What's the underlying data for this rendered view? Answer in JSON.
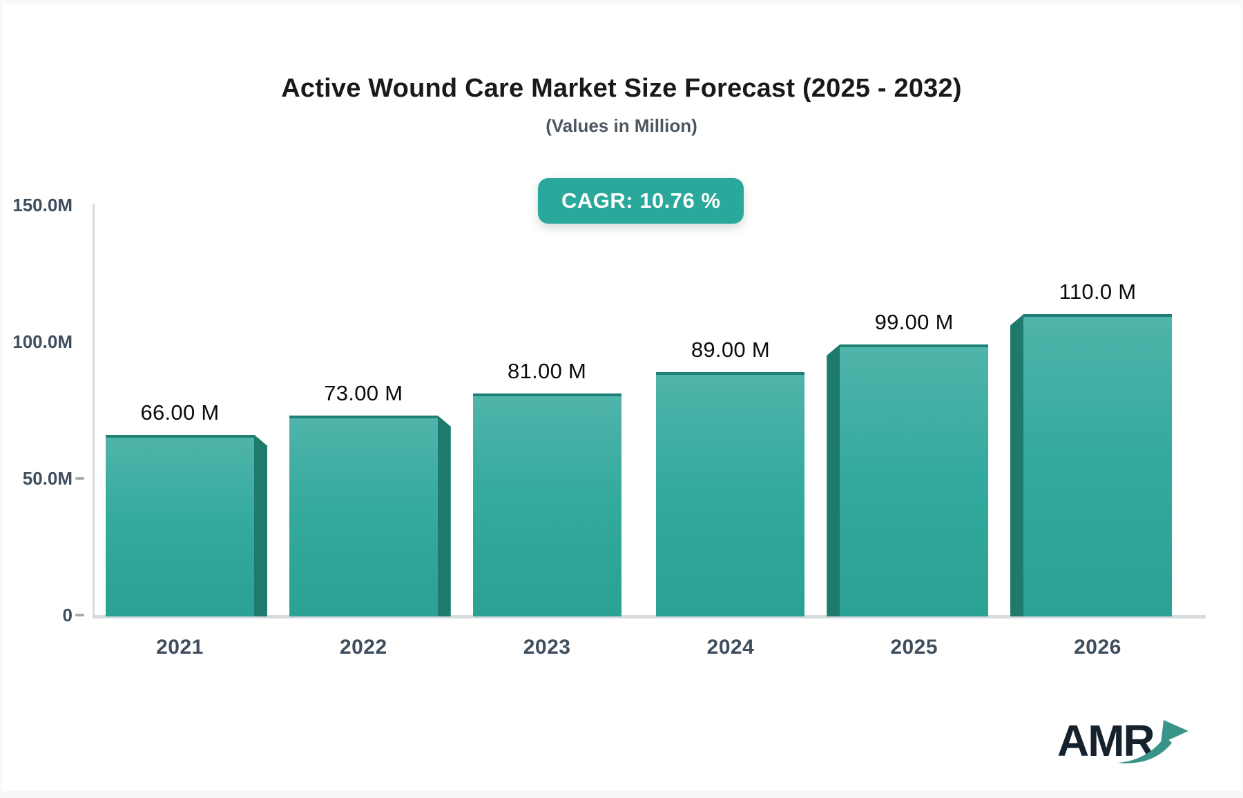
{
  "page": {
    "background": "#f7f8fa",
    "card_background": "#ffffff"
  },
  "header": {
    "title": "Active Wound Care Market Size Forecast (2025 - 2032)",
    "subtitle": "(Values in Million)",
    "cagr_badge": "CAGR: 10.76 %"
  },
  "logo": {
    "text": "AMR",
    "icon": "growth-arrow-icon"
  },
  "colors": {
    "accent": "#2BA89C",
    "bar_top": "#50B4AA",
    "bar_mid": "#35AA9E",
    "bar_bottom": "#2AA193",
    "bar_top_edge": "#1F8176",
    "bar_side": "#1F7A6E",
    "axis_line": "#D9DCE0",
    "tick_text": "#3E4E5C",
    "value_text": "#0B0B0B",
    "title_text": "#17191B",
    "subtitle_text": "#4C5660",
    "logo_text": "#15222D",
    "logo_arrow": "#39948A"
  },
  "chart_data": {
    "type": "bar",
    "title": "Active Wound Care Market Size Forecast (2025 - 2032)",
    "subtitle": "(Values in Million)",
    "unit": "Million",
    "cagr": "10.76 %",
    "categories": [
      "2021",
      "2022",
      "2023",
      "2024",
      "2025",
      "2026"
    ],
    "values": [
      66,
      73,
      81,
      89,
      99,
      110
    ],
    "value_labels": [
      "66.00 M",
      "73.00 M",
      "81.00 M",
      "89.00 M",
      "99.00 M",
      "110.0 M"
    ],
    "ylim": [
      0,
      150
    ],
    "y_ticks": [
      {
        "label": "150.0M",
        "value": 150,
        "dash": false
      },
      {
        "label": "100.0M",
        "value": 100,
        "dash": false
      },
      {
        "label": "50.0M",
        "value": 50,
        "dash": true
      },
      {
        "label": "0",
        "value": 0,
        "dash": true
      }
    ],
    "grid": false,
    "legend": false,
    "bar_3d_side": [
      "right",
      "right",
      "none",
      "none",
      "left",
      "left"
    ]
  }
}
